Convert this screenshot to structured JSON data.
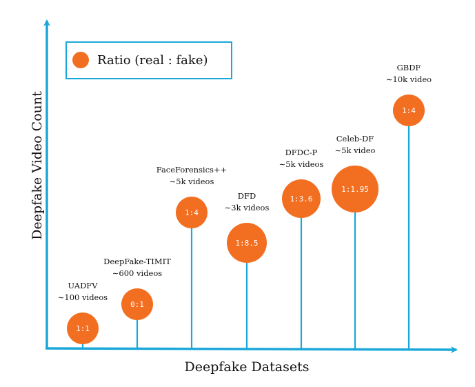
{
  "colors": {
    "axis": "#1aa7d9",
    "stem": "#1aa7d9",
    "bubble": "#f26f22",
    "legend_border": "#1aa7d9"
  },
  "chart_data": {
    "type": "scatter",
    "title": "",
    "xlabel": "Deepfake Datasets",
    "ylabel": "Deepfake Video Count",
    "legend": {
      "placement": "top-left",
      "entries": [
        "Ratio (real : fake)"
      ]
    },
    "grid": false,
    "series": [
      {
        "name": "Ratio (real : fake)",
        "points": [
          {
            "dataset": "UADFV",
            "count_label": "∼100 videos",
            "ratio": "1:1"
          },
          {
            "dataset": "DeepFake-TIMIT",
            "count_label": "∼600 videos",
            "ratio": "0:1"
          },
          {
            "dataset": "FaceForensics++",
            "count_label": "∼5k videos",
            "ratio": "1:4"
          },
          {
            "dataset": "DFD",
            "count_label": "∼3k videos",
            "ratio": "1:8.5"
          },
          {
            "dataset": "DFDC-P",
            "count_label": "∼5k videos",
            "ratio": "1:3.6"
          },
          {
            "dataset": "Celeb-DF",
            "count_label": "∼5k video",
            "ratio": "1:1.95"
          },
          {
            "dataset": "GBDF",
            "count_label": "∼10k video",
            "ratio": "1:4"
          }
        ]
      }
    ]
  }
}
